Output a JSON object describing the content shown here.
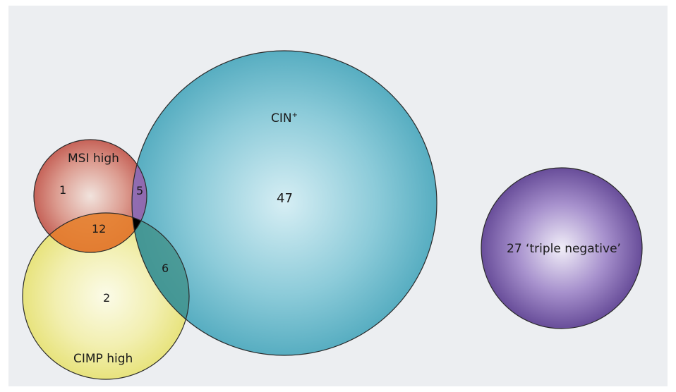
{
  "sets": {
    "cin": {
      "label": "CIN",
      "superscript": "+",
      "color": "#4aa6bb"
    },
    "msi": {
      "label": "MSI high",
      "color": "#c0544a"
    },
    "cimp": {
      "label": "CIMP high",
      "color": "#e5e070"
    },
    "triple_negative": {
      "label": "27 ‘triple negative’",
      "color": "#5a3e8e"
    }
  },
  "regions": {
    "cin_only": "47",
    "msi_only": "1",
    "msi_cin": "5",
    "msi_cimp": "12",
    "cimp_cin": "6",
    "cimp_only": "2"
  },
  "overlap_colors": {
    "msi_cin": "#8a6ab8",
    "msi_cimp": "#e57f2e",
    "cimp_cin": "#3d8f86",
    "all_three": "#000000"
  }
}
